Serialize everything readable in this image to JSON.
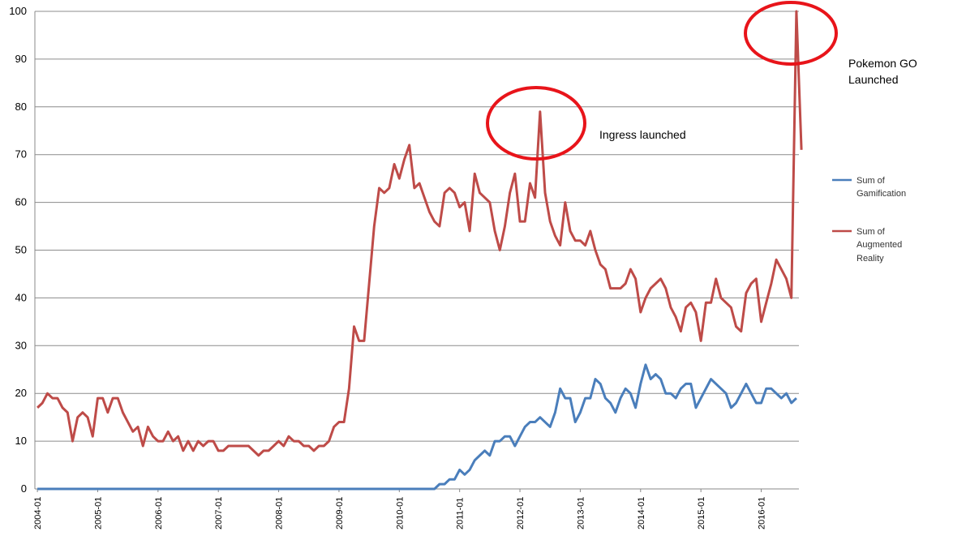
{
  "chart_data": {
    "type": "line",
    "title": "",
    "xlabel": "",
    "ylabel": "",
    "ylim": [
      0,
      100
    ],
    "yticks": [
      "0",
      "10",
      "20",
      "30",
      "40",
      "50",
      "60",
      "70",
      "80",
      "90",
      "100"
    ],
    "xtick_labels": [
      "2004-01",
      "2005-01",
      "2006-01",
      "2007-01",
      "2008-01",
      "2009-01",
      "2010-01",
      "2011-01",
      "2012-01",
      "2013-01",
      "2014-01",
      "2015-01",
      "2016-01"
    ],
    "grid": true,
    "legend_position": "right",
    "x_start": "2004-01",
    "x_end": "2016-08",
    "series": [
      {
        "name": "Sum of Gamification",
        "color": "#4a7ebb",
        "values": [
          0,
          0,
          0,
          0,
          0,
          0,
          0,
          0,
          0,
          0,
          0,
          0,
          0,
          0,
          0,
          0,
          0,
          0,
          0,
          0,
          0,
          0,
          0,
          0,
          0,
          0,
          0,
          0,
          0,
          0,
          0,
          0,
          0,
          0,
          0,
          0,
          0,
          0,
          0,
          0,
          0,
          0,
          0,
          0,
          0,
          0,
          0,
          0,
          0,
          0,
          0,
          0,
          0,
          0,
          0,
          0,
          0,
          0,
          0,
          0,
          0,
          0,
          0,
          0,
          0,
          0,
          0,
          0,
          0,
          0,
          0,
          0,
          0,
          0,
          0,
          0,
          0,
          0,
          0,
          0,
          1,
          1,
          2,
          2,
          4,
          3,
          4,
          6,
          7,
          8,
          7,
          10,
          10,
          11,
          11,
          9,
          11,
          13,
          14,
          14,
          15,
          14,
          13,
          16,
          21,
          19,
          19,
          14,
          16,
          19,
          19,
          23,
          22,
          19,
          18,
          16,
          19,
          21,
          20,
          17,
          22,
          26,
          23,
          24,
          23,
          20,
          20,
          19,
          21,
          22,
          22,
          17,
          19,
          21,
          23,
          22,
          21,
          20,
          17,
          18,
          20,
          22,
          20,
          18,
          18,
          21,
          21,
          20,
          19,
          20,
          18,
          19
        ]
      },
      {
        "name": "Sum of Augmented Reality",
        "color": "#be4b48",
        "values": [
          17,
          18,
          20,
          19,
          19,
          17,
          16,
          10,
          15,
          16,
          15,
          11,
          19,
          19,
          16,
          19,
          19,
          16,
          14,
          12,
          13,
          9,
          13,
          11,
          10,
          10,
          12,
          10,
          11,
          8,
          10,
          8,
          10,
          9,
          10,
          10,
          8,
          8,
          9,
          9,
          9,
          9,
          9,
          8,
          7,
          8,
          8,
          9,
          10,
          9,
          11,
          10,
          10,
          9,
          9,
          8,
          9,
          9,
          10,
          13,
          14,
          14,
          21,
          34,
          31,
          31,
          43,
          55,
          63,
          62,
          63,
          68,
          65,
          69,
          72,
          63,
          64,
          61,
          58,
          56,
          55,
          62,
          63,
          62,
          59,
          60,
          54,
          66,
          62,
          61,
          60,
          54,
          50,
          55,
          62,
          66,
          56,
          56,
          64,
          61,
          79,
          62,
          56,
          53,
          51,
          60,
          54,
          52,
          52,
          51,
          54,
          50,
          47,
          46,
          42,
          42,
          42,
          43,
          46,
          44,
          37,
          40,
          42,
          43,
          44,
          42,
          38,
          36,
          33,
          38,
          39,
          37,
          31,
          39,
          39,
          44,
          40,
          39,
          38,
          34,
          33,
          41,
          43,
          44,
          35,
          39,
          43,
          48,
          46,
          44,
          40,
          100,
          71
        ]
      }
    ],
    "annotations": [
      {
        "text": "Ingress launched"
      },
      {
        "text": "Pokemon GO"
      },
      {
        "text": "Launched"
      }
    ],
    "legend": {
      "gamification_line1": "Sum of",
      "gamification_line2": "Gamification",
      "ar_line1": "Sum of",
      "ar_line2": "Augmented",
      "ar_line3": "Reality"
    },
    "highlight_color": "#e8141a"
  }
}
